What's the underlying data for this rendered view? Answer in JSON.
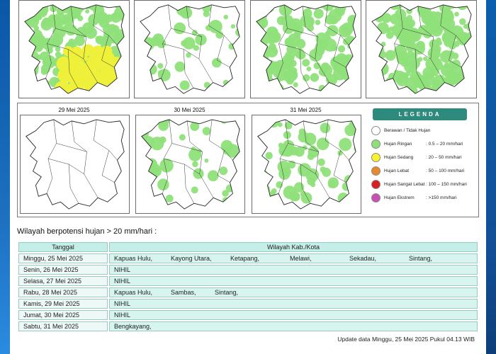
{
  "maps_row1": [
    {
      "id": "m1"
    },
    {
      "id": "m2"
    },
    {
      "id": "m3"
    },
    {
      "id": "m4"
    }
  ],
  "maps_row2": [
    {
      "date": "29 Mei 2025"
    },
    {
      "date": "30 Mei 2025"
    },
    {
      "date": "31 Mei 2025"
    }
  ],
  "legend": {
    "title": "LEGENDA",
    "items": [
      {
        "label": "Berawan / Tidak Hujan",
        "range": "",
        "color": "#ffffff"
      },
      {
        "label": "Hujan Ringan",
        "range": ": 0.5 – 20 mm/hari",
        "color": "#8fe07a"
      },
      {
        "label": "Hujan Sedang",
        "range": ": 20 – 50 mm/hari",
        "color": "#f7f22a"
      },
      {
        "label": "Hujan Lebat",
        "range": ": 50 – 100 mm/hari",
        "color": "#e8892c"
      },
      {
        "label": "Hujan Sangat Lebat",
        "range": ": 100 – 150 mm/hari",
        "color": "#d81e1e"
      },
      {
        "label": "Hujan Ekstrem",
        "range": ": >150 mm/hari",
        "color": "#c94fb5"
      }
    ]
  },
  "section_title": "Wilayah berpotensi hujan > 20 mm/hari :",
  "table": {
    "headers": [
      "Tanggal",
      "Wilayah Kab./Kota"
    ],
    "rows": [
      {
        "date": "Minggu, 25 Mei 2025",
        "regions": [
          "Kapuas Hulu,",
          "Kayong Utara,",
          "Ketapang,",
          "Melawi,",
          "Sekadau,",
          "Sintang,"
        ]
      },
      {
        "date": "Senin, 26 Mei 2025",
        "regions": [
          "NIHIL"
        ]
      },
      {
        "date": "Selasa, 27 Mei 2025",
        "regions": [
          "NIHIL"
        ]
      },
      {
        "date": "Rabu, 28 Mei 2025",
        "regions": [
          "Kapuas Hulu,",
          "Sambas,",
          "Sintang,"
        ]
      },
      {
        "date": "Kamis, 29 Mei 2025",
        "regions": [
          "NIHIL"
        ]
      },
      {
        "date": "Jumat, 30 Mei 2025",
        "regions": [
          "NIHIL"
        ]
      },
      {
        "date": "Sabtu, 31 Mei 2025",
        "regions": [
          "Bengkayang,"
        ]
      }
    ]
  },
  "footer": "Update data Minggu, 25 Mei 2025 Pukul 04.13 WIB"
}
